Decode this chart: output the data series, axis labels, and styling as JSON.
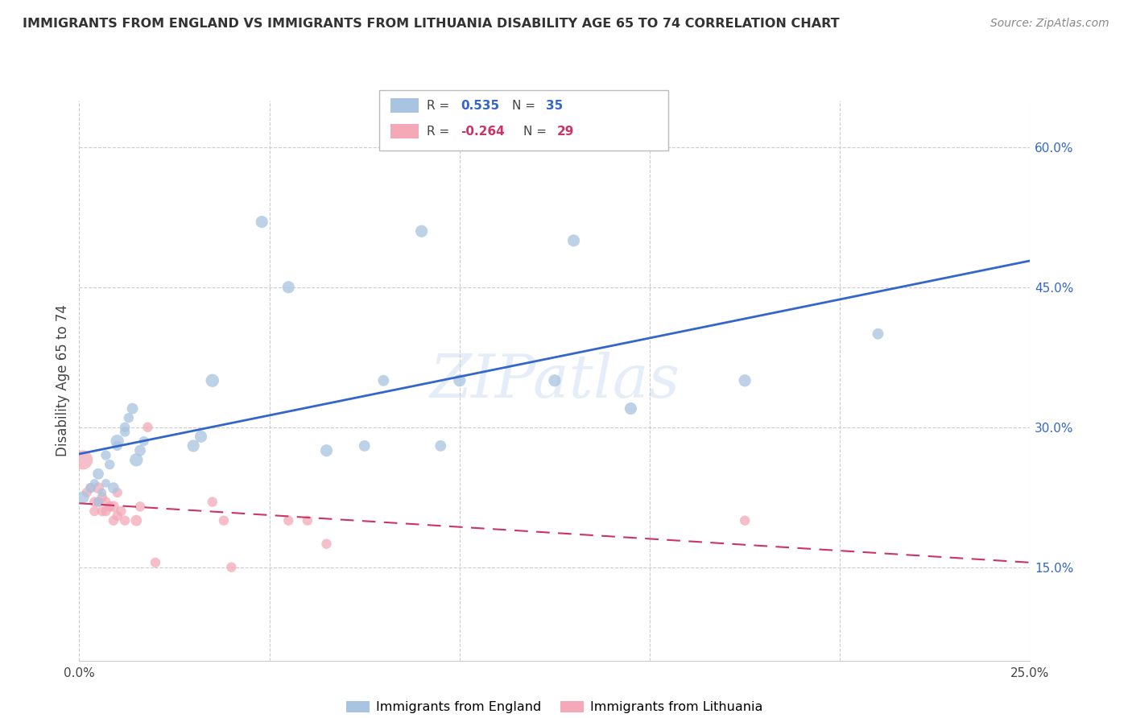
{
  "title": "IMMIGRANTS FROM ENGLAND VS IMMIGRANTS FROM LITHUANIA DISABILITY AGE 65 TO 74 CORRELATION CHART",
  "source": "Source: ZipAtlas.com",
  "ylabel": "Disability Age 65 to 74",
  "x_min": 0.0,
  "x_max": 0.25,
  "y_min": 0.05,
  "y_max": 0.65,
  "x_ticks": [
    0.0,
    0.05,
    0.1,
    0.15,
    0.2,
    0.25
  ],
  "x_tick_labels": [
    "0.0%",
    "",
    "",
    "",
    "",
    "25.0%"
  ],
  "y_ticks": [
    0.15,
    0.3,
    0.45,
    0.6
  ],
  "y_tick_labels": [
    "15.0%",
    "30.0%",
    "45.0%",
    "60.0%"
  ],
  "england_color": "#a8c4e0",
  "england_line_color": "#3366cc",
  "lithuania_color": "#f4a8b8",
  "lithuania_line_color": "#cc3366",
  "watermark": "ZIPatlas",
  "legend_england_R": "0.535",
  "legend_england_N": "35",
  "legend_lithuania_R": "-0.264",
  "legend_lithuania_N": "29",
  "england_x": [
    0.001,
    0.003,
    0.004,
    0.005,
    0.005,
    0.006,
    0.007,
    0.007,
    0.008,
    0.009,
    0.01,
    0.01,
    0.012,
    0.012,
    0.013,
    0.014,
    0.015,
    0.016,
    0.017,
    0.03,
    0.032,
    0.035,
    0.048,
    0.055,
    0.065,
    0.075,
    0.08,
    0.09,
    0.095,
    0.1,
    0.125,
    0.13,
    0.145,
    0.175,
    0.21
  ],
  "england_y": [
    0.225,
    0.235,
    0.24,
    0.22,
    0.25,
    0.23,
    0.24,
    0.27,
    0.26,
    0.235,
    0.28,
    0.285,
    0.295,
    0.3,
    0.31,
    0.32,
    0.265,
    0.275,
    0.285,
    0.28,
    0.29,
    0.35,
    0.52,
    0.45,
    0.275,
    0.28,
    0.35,
    0.51,
    0.28,
    0.35,
    0.35,
    0.5,
    0.32,
    0.35,
    0.4
  ],
  "england_size": [
    120,
    80,
    60,
    80,
    100,
    60,
    60,
    80,
    80,
    100,
    80,
    140,
    80,
    80,
    80,
    100,
    140,
    100,
    80,
    120,
    120,
    140,
    120,
    120,
    120,
    100,
    100,
    120,
    100,
    120,
    120,
    120,
    120,
    120,
    100
  ],
  "lithuania_x": [
    0.001,
    0.002,
    0.003,
    0.004,
    0.004,
    0.005,
    0.005,
    0.006,
    0.006,
    0.007,
    0.007,
    0.008,
    0.009,
    0.009,
    0.01,
    0.01,
    0.011,
    0.012,
    0.015,
    0.016,
    0.018,
    0.02,
    0.035,
    0.038,
    0.04,
    0.055,
    0.06,
    0.065,
    0.175
  ],
  "lithuania_y": [
    0.265,
    0.23,
    0.235,
    0.22,
    0.21,
    0.235,
    0.22,
    0.225,
    0.21,
    0.22,
    0.21,
    0.215,
    0.215,
    0.2,
    0.23,
    0.205,
    0.21,
    0.2,
    0.2,
    0.215,
    0.3,
    0.155,
    0.22,
    0.2,
    0.15,
    0.2,
    0.2,
    0.175,
    0.2
  ],
  "lithuania_size": [
    300,
    80,
    80,
    80,
    80,
    100,
    80,
    80,
    80,
    80,
    80,
    80,
    100,
    80,
    80,
    80,
    80,
    80,
    100,
    80,
    80,
    80,
    80,
    80,
    80,
    80,
    80,
    80,
    80
  ]
}
